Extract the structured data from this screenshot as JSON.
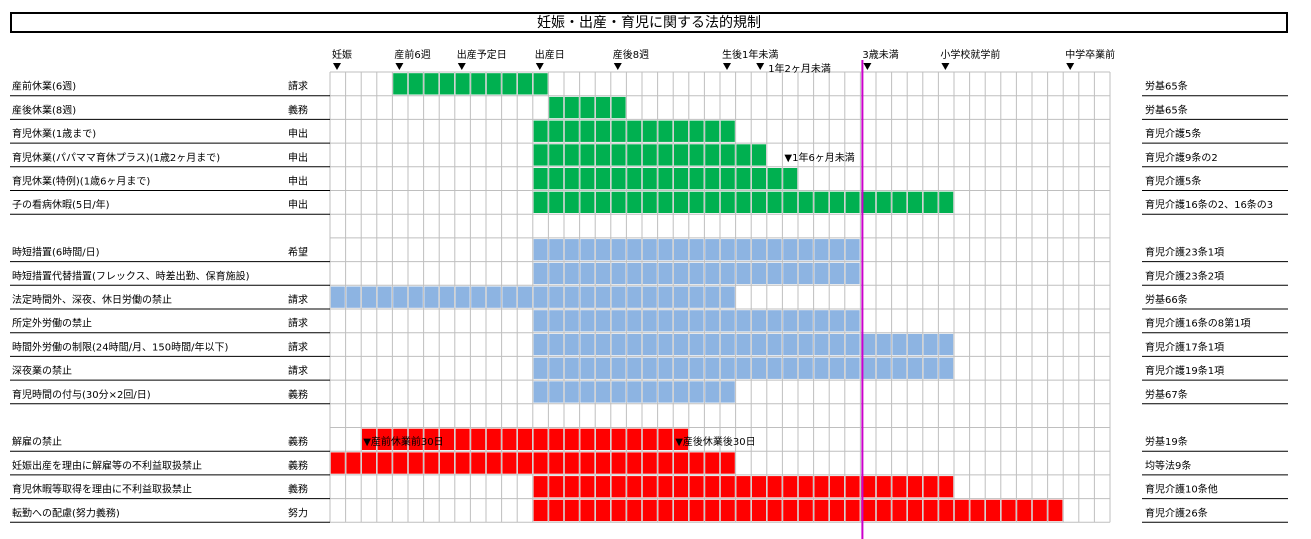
{
  "title": "妊娠・出産・育児に関する法的規制",
  "colors": {
    "green": "#00b050",
    "blue": "#8db4e2",
    "red": "#ff0000",
    "grid": "#bfbfbf",
    "marker": "#cc00cc"
  },
  "chart_data": {
    "type": "gantt",
    "x_unit": "column",
    "total_columns": 50,
    "reference_line_col": 34,
    "milestones": [
      {
        "label": "妊娠",
        "col": 0
      },
      {
        "label": "産前6週",
        "col": 4
      },
      {
        "label": "出産予定日",
        "col": 8
      },
      {
        "label": "出産日",
        "col": 13
      },
      {
        "label": "産後8週",
        "col": 18
      },
      {
        "label": "生後1年未満",
        "col": 25
      },
      {
        "label": "1年2ヶ月未満",
        "col": 27,
        "second_line": true
      },
      {
        "label": "3歳未満",
        "col": 34
      },
      {
        "label": "小学校就学前",
        "col": 39
      },
      {
        "label": "中学卒業前",
        "col": 47
      }
    ],
    "rows": [
      {
        "name": "産前休業(6週)",
        "type": "請求",
        "law": "労基65条",
        "bars": [
          {
            "start": 4,
            "end": 13,
            "color": "green"
          }
        ]
      },
      {
        "name": "産後休業(8週)",
        "type": "義務",
        "law": "労基65条",
        "bars": [
          {
            "start": 14,
            "end": 18,
            "color": "green"
          }
        ]
      },
      {
        "name": "育児休業(1歳まで)",
        "type": "申出",
        "law": "育児介護5条",
        "bars": [
          {
            "start": 13,
            "end": 25,
            "color": "green"
          }
        ]
      },
      {
        "name": "育児休業(パパママ育休プラス)(1歳2ヶ月まで)",
        "type": "申出",
        "law": "育児介護9条の2",
        "bars": [
          {
            "start": 13,
            "end": 27,
            "color": "green"
          }
        ],
        "note": "▼1年6ヶ月未満",
        "note_col": 29
      },
      {
        "name": "育児休業(特例)(1歳6ヶ月まで)",
        "type": "申出",
        "law": "育児介護5条",
        "bars": [
          {
            "start": 13,
            "end": 29,
            "color": "green"
          }
        ]
      },
      {
        "name": "子の看病休暇(5日/年)",
        "type": "申出",
        "law": "育児介護16条の2、16条の3",
        "bars": [
          {
            "start": 13,
            "end": 39,
            "color": "green"
          }
        ]
      },
      {
        "name": "",
        "type": "",
        "law": "",
        "bars": [],
        "spacer": true
      },
      {
        "name": "時短措置(6時間/日)",
        "type": "希望",
        "law": "育児介護23条1項",
        "bars": [
          {
            "start": 13,
            "end": 33,
            "color": "blue"
          }
        ]
      },
      {
        "name": "時短措置代替措置(フレックス、時差出勤、保育施設)",
        "type": "",
        "law": "育児介護23条2項",
        "bars": [
          {
            "start": 13,
            "end": 33,
            "color": "blue"
          }
        ]
      },
      {
        "name": "法定時間外、深夜、休日労働の禁止",
        "type": "請求",
        "law": "労基66条",
        "bars": [
          {
            "start": 0,
            "end": 25,
            "color": "blue"
          }
        ]
      },
      {
        "name": "所定外労働の禁止",
        "type": "請求",
        "law": "育児介護16条の8第1項",
        "bars": [
          {
            "start": 13,
            "end": 33,
            "color": "blue"
          }
        ]
      },
      {
        "name": "時間外労働の制限(24時間/月、150時間/年以下)",
        "type": "請求",
        "law": "育児介護17条1項",
        "bars": [
          {
            "start": 13,
            "end": 39,
            "color": "blue"
          }
        ]
      },
      {
        "name": "深夜業の禁止",
        "type": "請求",
        "law": "育児介護19条1項",
        "bars": [
          {
            "start": 13,
            "end": 39,
            "color": "blue"
          }
        ]
      },
      {
        "name": "育児時間の付与(30分×2回/日)",
        "type": "義務",
        "law": "労基67条",
        "bars": [
          {
            "start": 13,
            "end": 25,
            "color": "blue"
          }
        ]
      },
      {
        "name": "",
        "type": "",
        "law": "",
        "bars": [],
        "spacer": true
      },
      {
        "name": "解雇の禁止",
        "type": "義務",
        "law": "労基19条",
        "bars": [
          {
            "start": 2,
            "end": 22,
            "color": "red"
          }
        ],
        "notes": [
          {
            "text": "▼産前休業前30日",
            "col": 2
          },
          {
            "text": "▼産後休業後30日",
            "col": 22
          }
        ]
      },
      {
        "name": "妊娠出産を理由に解雇等の不利益取扱禁止",
        "type": "義務",
        "law": "均等法9条",
        "bars": [
          {
            "start": 0,
            "end": 25,
            "color": "red"
          }
        ]
      },
      {
        "name": "育児休暇等取得を理由に不利益取扱禁止",
        "type": "義務",
        "law": "育児介護10条他",
        "bars": [
          {
            "start": 13,
            "end": 39,
            "color": "red"
          }
        ]
      },
      {
        "name": "転勤への配慮(努力義務)",
        "type": "努力",
        "law": "育児介護26条",
        "bars": [
          {
            "start": 13,
            "end": 46,
            "color": "red"
          }
        ]
      }
    ]
  }
}
